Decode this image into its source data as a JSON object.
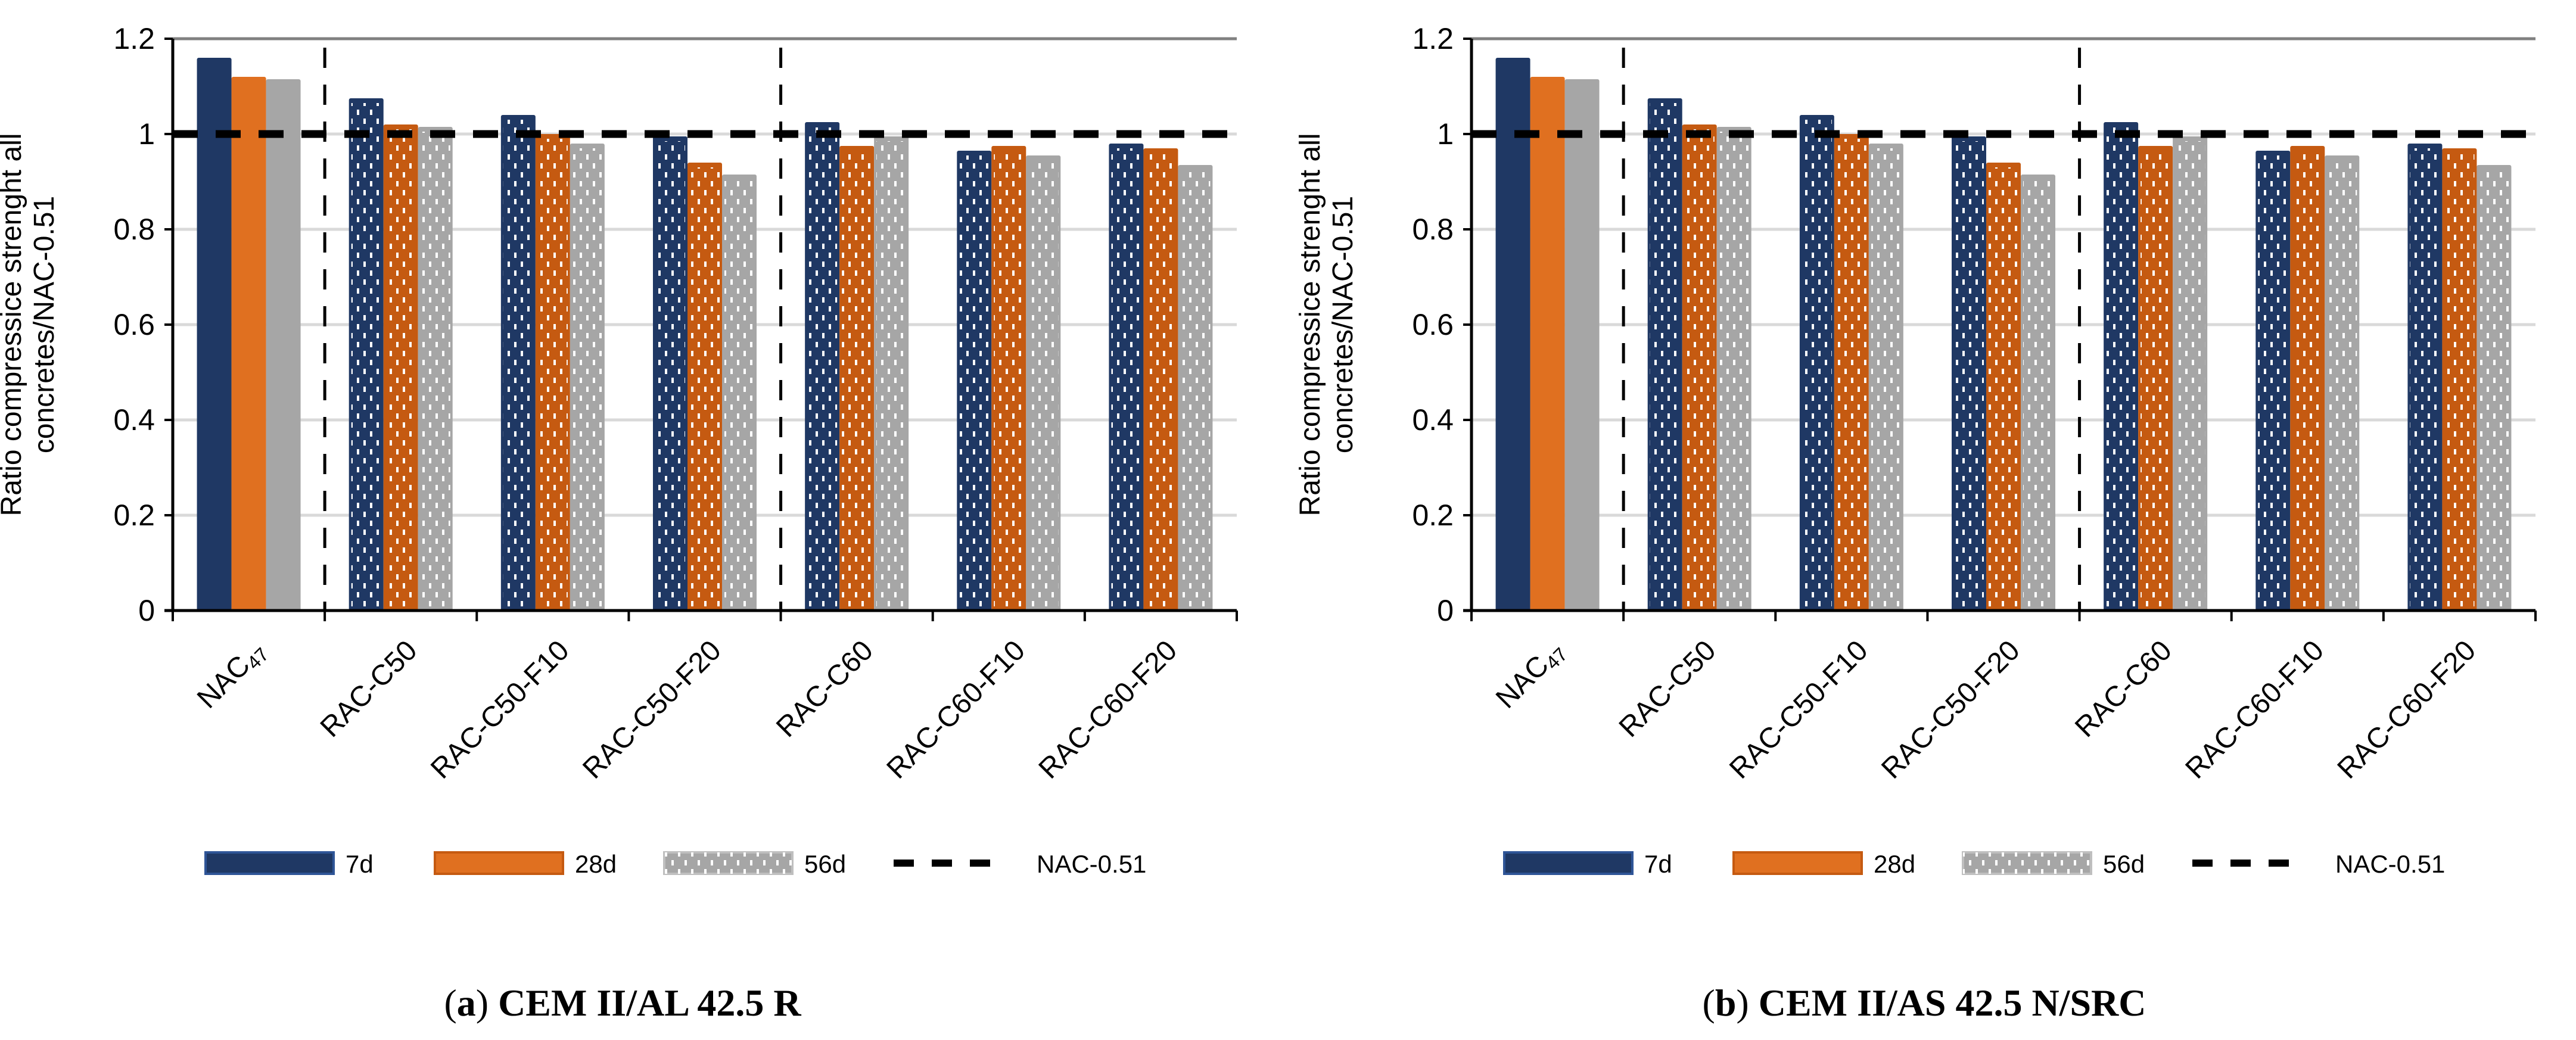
{
  "chart_data": [
    {
      "type": "bar",
      "caption_letter": "a",
      "caption_text": "CEM II/AL 42.5 R",
      "ylabel_lines": [
        "Ratio compressice strenght all",
        "concretes/NAC-0.51"
      ],
      "ylim": [
        0,
        1.2
      ],
      "yticks": [
        "0",
        "0.2",
        "0.4",
        "0.6",
        "0.8",
        "1",
        "1.2"
      ],
      "grid": true,
      "categories": [
        "NAC",
        "RAC-C50",
        "RAC-C50-F10",
        "RAC-C50-F20",
        "RAC-C60",
        "RAC-C60-F10",
        "RAC-C60-F20"
      ],
      "first_category_subscript": "47",
      "series": [
        {
          "name": "7d",
          "color": "#1f3864",
          "values": [
            1.16,
            1.075,
            1.04,
            0.995,
            1.025,
            0.965,
            0.98
          ]
        },
        {
          "name": "28d",
          "color": "#e07020",
          "values": [
            1.12,
            1.02,
            1.0,
            0.94,
            0.975,
            0.975,
            0.97
          ]
        },
        {
          "name": "56d",
          "color": "#a6a6a6",
          "values": [
            1.115,
            1.015,
            0.98,
            0.915,
            0.995,
            0.955,
            0.935
          ]
        }
      ],
      "reference_line": {
        "name": "NAC-0.51",
        "value": 1.0
      },
      "legend_position": "bottom"
    },
    {
      "type": "bar",
      "caption_letter": "b",
      "caption_text": "CEM II/AS 42.5 N/SRC",
      "ylabel_lines": [
        "Ratio compressice strenght all",
        "concretes/NAC-0.51"
      ],
      "ylim": [
        0,
        1.2
      ],
      "yticks": [
        "0",
        "0.2",
        "0.4",
        "0.6",
        "0.8",
        "1",
        "1.2"
      ],
      "grid": true,
      "categories": [
        "NAC",
        "RAC-C50",
        "RAC-C50-F10",
        "RAC-C50-F20",
        "RAC-C60",
        "RAC-C60-F10",
        "RAC-C60-F20"
      ],
      "first_category_subscript": "47",
      "series": [
        {
          "name": "7d",
          "color": "#1f3864",
          "values": [
            1.16,
            1.075,
            1.04,
            0.995,
            1.025,
            0.965,
            0.98
          ]
        },
        {
          "name": "28d",
          "color": "#e07020",
          "values": [
            1.12,
            1.02,
            1.0,
            0.94,
            0.975,
            0.975,
            0.97
          ]
        },
        {
          "name": "56d",
          "color": "#a6a6a6",
          "values": [
            1.115,
            1.015,
            0.98,
            0.915,
            0.995,
            0.955,
            0.935
          ]
        }
      ],
      "reference_line": {
        "name": "NAC-0.51",
        "value": 1.0
      },
      "legend_position": "bottom"
    }
  ]
}
